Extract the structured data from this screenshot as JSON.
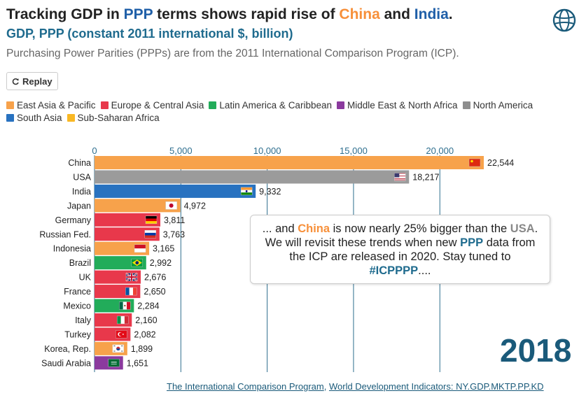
{
  "header": {
    "title_parts": [
      "Tracking GDP in ",
      "PPP",
      " terms shows rapid rise of ",
      "China",
      " and ",
      "India",
      "."
    ],
    "subtitle": "GDP, PPP (constant 2011 international $, billion)",
    "description": "Purchasing Power Parities (PPPs) are from the 2011 International Comparison Program (ICP)."
  },
  "controls": {
    "replay_label": "Replay"
  },
  "legend": {
    "rows": [
      [
        {
          "label": "East Asia & Pacific",
          "color": "#f7a24b"
        },
        {
          "label": "Europe & Central Asia",
          "color": "#e8384b"
        },
        {
          "label": "Latin America & Caribbean",
          "color": "#22ac5a"
        },
        {
          "label": "Middle East & North Africa",
          "color": "#8b3a9e"
        },
        {
          "label": "North America",
          "color": "#8e8e8e"
        }
      ],
      [
        {
          "label": "South Asia",
          "color": "#2872c0"
        },
        {
          "label": "Sub-Saharan Africa",
          "color": "#f9b824"
        }
      ]
    ]
  },
  "chart_data": {
    "type": "bar",
    "orientation": "horizontal",
    "x_ticks": [
      "0",
      "5,000",
      "10,000",
      "15,000",
      "20,000"
    ],
    "x_tick_values": [
      0,
      5000,
      10000,
      15000,
      20000
    ],
    "xlim": [
      0,
      22544
    ],
    "grid": true,
    "categories": [
      "China",
      "USA",
      "India",
      "Japan",
      "Germany",
      "Russian Fed.",
      "Indonesia",
      "Brazil",
      "UK",
      "France",
      "Mexico",
      "Italy",
      "Turkey",
      "Korea, Rep.",
      "Saudi Arabia"
    ],
    "values": [
      22544,
      18217,
      9332,
      4972,
      3811,
      3763,
      3165,
      2992,
      2676,
      2650,
      2284,
      2160,
      2082,
      1899,
      1651
    ],
    "value_labels": [
      "22,544",
      "18,217",
      "9,332",
      "4,972",
      "3,811",
      "3,763",
      "3,165",
      "2,992",
      "2,676",
      "2,650",
      "2,284",
      "2,160",
      "2,082",
      "1,899",
      "1,651"
    ],
    "regions": [
      "East Asia & Pacific",
      "North America",
      "South Asia",
      "East Asia & Pacific",
      "Europe & Central Asia",
      "Europe & Central Asia",
      "East Asia & Pacific",
      "Latin America & Caribbean",
      "Europe & Central Asia",
      "Europe & Central Asia",
      "Latin America & Caribbean",
      "Europe & Central Asia",
      "Europe & Central Asia",
      "East Asia & Pacific",
      "Middle East & North Africa"
    ],
    "colors": [
      "#f7a24b",
      "#9b9b9b",
      "#2872c0",
      "#f7a24b",
      "#e8384b",
      "#e8384b",
      "#f7a24b",
      "#22ac5a",
      "#e8384b",
      "#e8384b",
      "#22ac5a",
      "#e8384b",
      "#e8384b",
      "#f7a24b",
      "#8b3a9e"
    ],
    "flags": [
      "china-flag",
      "usa-flag",
      "india-flag",
      "japan-flag",
      "germany-flag",
      "russia-flag",
      "indonesia-flag",
      "brazil-flag",
      "uk-flag",
      "france-flag",
      "mexico-flag",
      "italy-flag",
      "turkey-flag",
      "korea-flag",
      "saudi-arabia-flag"
    ]
  },
  "callout": {
    "parts": [
      {
        "text": "... and ",
        "style": "normal"
      },
      {
        "text": "China",
        "style": "orange"
      },
      {
        "text": " is now nearly 25% bigger than the ",
        "style": "normal"
      },
      {
        "text": "USA",
        "style": "gray"
      },
      {
        "text": ". We will revisit these trends when new ",
        "style": "normal"
      },
      {
        "text": "PPP",
        "style": "blue"
      },
      {
        "text": " data from the ICP are released in 2020. Stay tuned to ",
        "style": "normal"
      },
      {
        "text": "#ICPPPP",
        "style": "blue"
      },
      {
        "text": "....",
        "style": "normal"
      }
    ]
  },
  "year_label": "2018",
  "source": {
    "link1": "The International Comparison Program",
    "separator": ", ",
    "link2": "World Development Indicators: NY.GDP.MKTP.PP.KD"
  },
  "icons": {
    "logo": "world-bank-globe-icon",
    "replay": "replay-icon"
  }
}
